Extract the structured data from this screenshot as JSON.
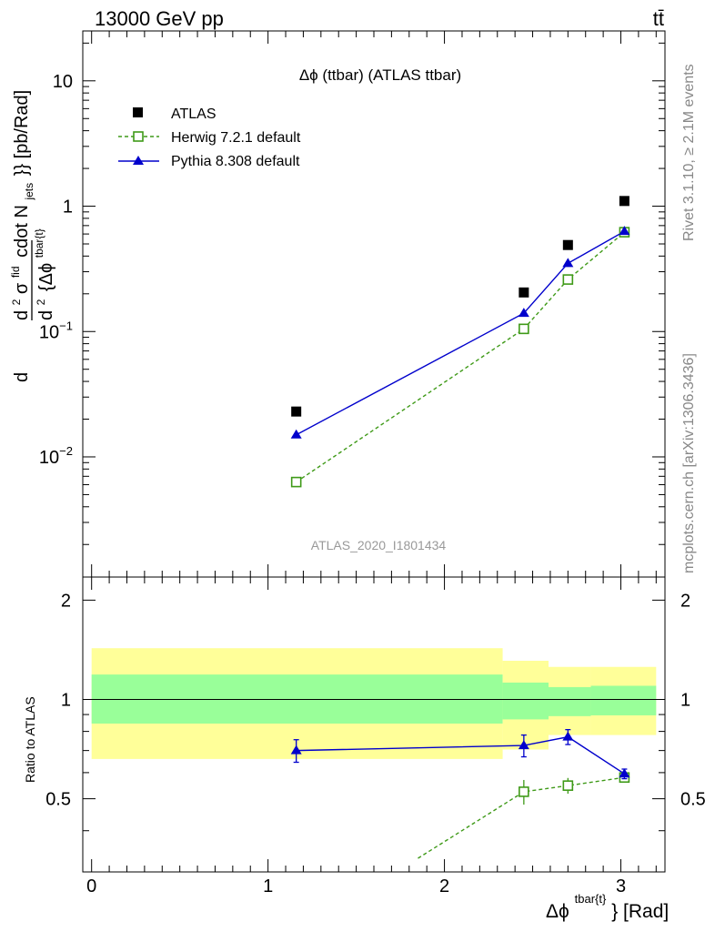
{
  "header": {
    "left": "13000 GeV pp",
    "right": "tt̄"
  },
  "side_labels": {
    "rivet": "Rivet 3.1.10, ≥ 2.1M events",
    "mcplots": "mcplots.cern.ch [arXiv:1306.3436]"
  },
  "main_plot": {
    "title": "Δϕ (ttbar) (ATLAS ttbar)",
    "watermark": "ATLAS_2020_I1801434",
    "ylabel": "d²σ^fid / d² {Δϕ^tbar{t}} cdot N_jets}} [pb/Rad]",
    "ylabel_parts": {
      "d1": "d",
      "d2": "d",
      "sup2": "2",
      "sigma": "σ",
      "fid": "fid",
      "cdot": "cdot N",
      "jets": "jets",
      "close": "}} [pb/Rad]",
      "den_d": "d",
      "den_sup": "2",
      "den_rest": "{Δϕ",
      "den_tbar": "tbar{t}"
    },
    "yticks": [
      {
        "value": 0.01,
        "base": "10",
        "exp": "−2"
      },
      {
        "value": 0.1,
        "base": "10",
        "exp": "−1"
      },
      {
        "value": 1,
        "base": "1",
        "exp": ""
      },
      {
        "value": 10,
        "base": "10",
        "exp": ""
      }
    ],
    "legend": [
      {
        "label": "ATLAS",
        "marker": "square-filled",
        "color": "#000000"
      },
      {
        "label": "Herwig 7.2.1 default",
        "marker": "square-open",
        "color": "#3f9a18"
      },
      {
        "label": "Pythia 8.308 default",
        "marker": "triangle",
        "color": "#0000cc"
      }
    ]
  },
  "ratio_plot": {
    "ylabel": "Ratio to ATLAS",
    "yticks": [
      "0.5",
      "1",
      "2"
    ],
    "xlabel": "Δϕ",
    "xlabel_sup": "tbar{t}",
    "xlabel_rest": "} [Rad]",
    "xticks": [
      "0",
      "1",
      "2",
      "3"
    ]
  },
  "colors": {
    "data": "#000000",
    "herwig": "#3f9a18",
    "pythia": "#0000cc",
    "band_outer": "#ffff99",
    "band_inner": "#99ff99"
  },
  "chart_data": {
    "type": "scatter",
    "x_range": [
      -0.05,
      3.25
    ],
    "main_ylim": [
      0.0011,
      25
    ],
    "main_log": true,
    "ratio_ylim": [
      0.3,
      2.35
    ],
    "ratio_log": true,
    "x": [
      1.16,
      2.45,
      2.7,
      3.02
    ],
    "series": [
      {
        "name": "ATLAS",
        "values": [
          0.023,
          0.205,
          0.49,
          1.1
        ]
      },
      {
        "name": "Herwig 7.2.1 default",
        "values": [
          0.0063,
          0.105,
          0.26,
          0.62
        ]
      },
      {
        "name": "Pythia 8.308 default",
        "values": [
          0.015,
          0.14,
          0.35,
          0.63
        ]
      }
    ],
    "ratio_series": [
      {
        "name": "Pythia 8.308 default",
        "x": [
          1.16,
          2.45,
          2.7,
          3.02
        ],
        "values": [
          0.7,
          0.725,
          0.77,
          0.595
        ],
        "err": [
          0.055,
          0.055,
          0.04,
          0.02
        ]
      },
      {
        "name": "Herwig 7.2.1 default",
        "x": [
          1.85,
          2.45,
          2.7,
          3.02
        ],
        "values": [
          0.33,
          0.525,
          0.548,
          0.58
        ],
        "err": [
          0,
          0.045,
          0.03,
          0.015
        ]
      }
    ],
    "bands": [
      {
        "x0": 0.0,
        "x1": 2.33,
        "outer": [
          0.66,
          1.43
        ],
        "inner": [
          0.845,
          1.19
        ]
      },
      {
        "x0": 2.33,
        "x1": 2.59,
        "outer": [
          0.705,
          1.31
        ],
        "inner": [
          0.87,
          1.125
        ]
      },
      {
        "x0": 2.59,
        "x1": 2.83,
        "outer": [
          0.78,
          1.255
        ],
        "inner": [
          0.89,
          1.09
        ]
      },
      {
        "x0": 2.83,
        "x1": 3.2,
        "outer": [
          0.78,
          1.255
        ],
        "inner": [
          0.895,
          1.1
        ]
      }
    ]
  }
}
